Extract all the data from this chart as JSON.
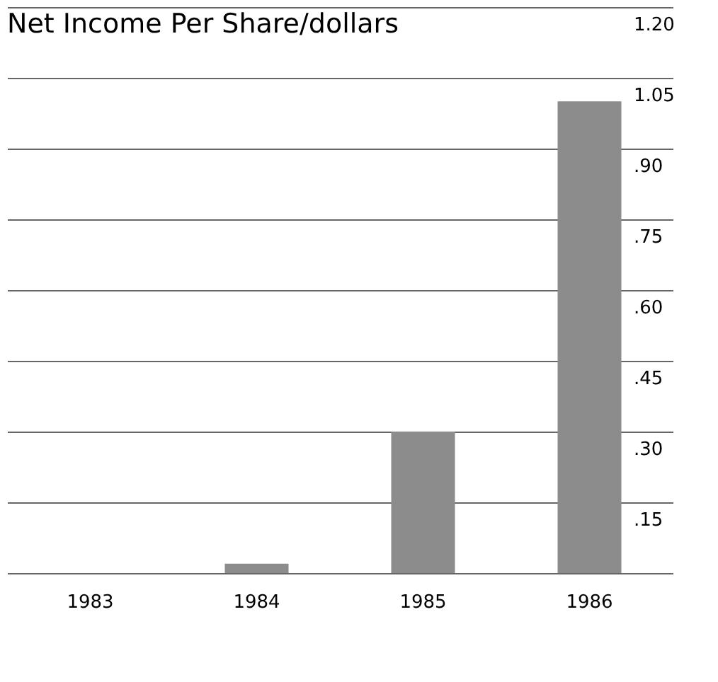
{
  "chart_data": {
    "type": "bar",
    "title": "Net Income Per Share/dollars",
    "categories": [
      "1983",
      "1984",
      "1985",
      "1986"
    ],
    "values": [
      0,
      0.02,
      0.3,
      1.0
    ],
    "color": "#8c8c8c",
    "ylim": [
      0,
      1.2
    ],
    "yticks": [
      {
        "value": 0,
        "label": null
      },
      {
        "value": 0.15,
        "label": ".15"
      },
      {
        "value": 0.3,
        "label": ".30"
      },
      {
        "value": 0.45,
        "label": ".45"
      },
      {
        "value": 0.6,
        "label": ".60"
      },
      {
        "value": 0.75,
        "label": ".75"
      },
      {
        "value": 0.9,
        "label": ".90"
      },
      {
        "value": 1.05,
        "label": "1.05"
      },
      {
        "value": 1.2,
        "label": "1.20"
      }
    ],
    "grid": "y"
  }
}
